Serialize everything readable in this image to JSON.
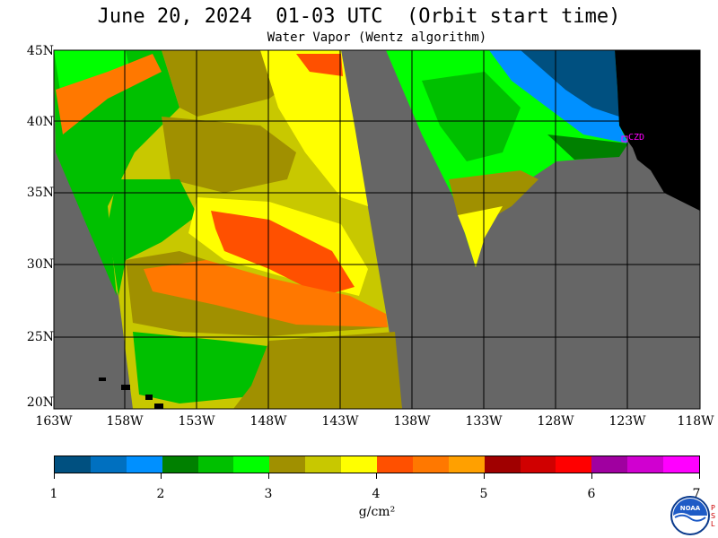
{
  "title": "June 20, 2024  01-03 UTC  (Orbit start time)",
  "subtitle": "Water Vapor (Wentz algorithm)",
  "map": {
    "lat_labels": [
      "45N",
      "40N",
      "35N",
      "30N",
      "25N",
      "20N"
    ],
    "lon_labels": [
      "163W",
      "158W",
      "153W",
      "148W",
      "143W",
      "138W",
      "133W",
      "128W",
      "123W",
      "118W"
    ],
    "station_label": "CZD",
    "colors": {
      "no_data": "#666666",
      "land": "#000000",
      "grid": "#000000",
      "station": "#ff00ff"
    }
  },
  "colorbar": {
    "colors": [
      "#005080",
      "#0070c0",
      "#0090ff",
      "#008000",
      "#00c000",
      "#00ff00",
      "#a09000",
      "#c8c800",
      "#ffff00",
      "#ff5000",
      "#ff7800",
      "#ffa000",
      "#a00000",
      "#d00000",
      "#ff0000",
      "#a000a0",
      "#d000d0",
      "#ff00ff"
    ],
    "labels": [
      "1",
      "2",
      "3",
      "4",
      "5",
      "6",
      "7"
    ],
    "unit": "g/cm²"
  },
  "logo": {
    "text": "NOAA",
    "side_text": [
      "P",
      "S",
      "L"
    ]
  }
}
